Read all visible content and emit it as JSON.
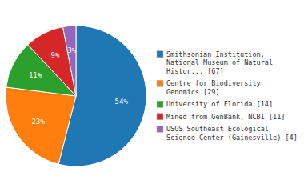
{
  "chart_data": {
    "type": "pie",
    "labels": [
      "Smithsonian Institution,\nNational Museum of Natural\nHistor... [67]",
      "Centre for Biodiversity\nGenomics [29]",
      "University of Florida [14]",
      "Mined from GenBank, NCBI [11]",
      "USGS Southeast Ecological\nScience Center (Gainesville) [4]"
    ],
    "values": [
      54,
      23,
      11,
      9,
      3
    ],
    "value_labels": [
      "54%",
      "23%",
      "11%",
      "9%",
      "3%"
    ],
    "data_labels": true,
    "legend": "right"
  }
}
